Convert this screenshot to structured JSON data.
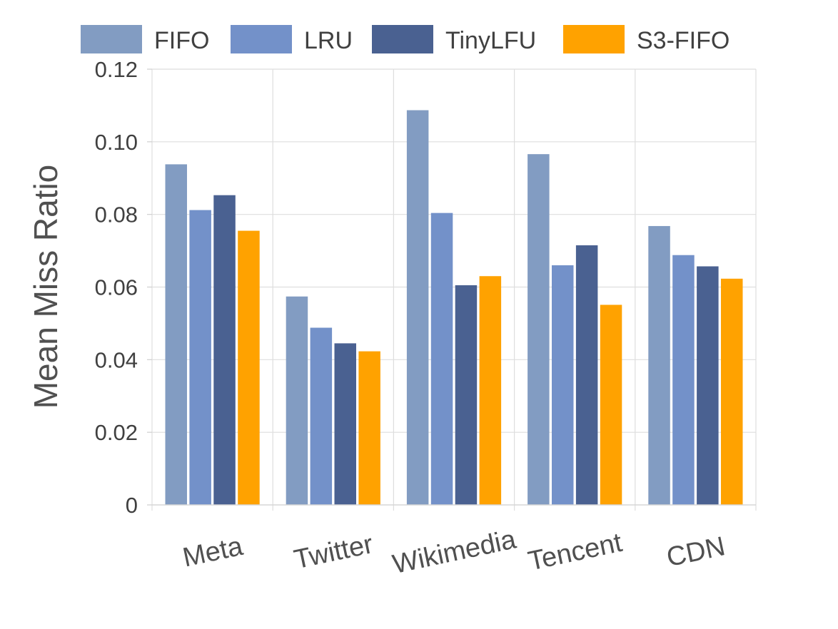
{
  "chart_data": {
    "type": "bar",
    "title": "",
    "xlabel": "",
    "ylabel": "Mean Miss Ratio",
    "ylim": [
      0,
      0.12
    ],
    "yticks": [
      0,
      0.02,
      0.04,
      0.06,
      0.08,
      0.1,
      0.12
    ],
    "ytick_labels": [
      "0",
      "0.02",
      "0.04",
      "0.06",
      "0.08",
      "0.10",
      "0.12"
    ],
    "grid": true,
    "legend_position": "top",
    "categories": [
      "Meta",
      "Twitter",
      "Wikimedia",
      "Tencent",
      "CDN"
    ],
    "series": [
      {
        "name": "FIFO",
        "color": "#829cc2",
        "values": [
          0.0938,
          0.0574,
          0.1087,
          0.0966,
          0.0768
        ]
      },
      {
        "name": "LRU",
        "color": "#7391c9",
        "values": [
          0.0812,
          0.0488,
          0.0804,
          0.066,
          0.0688
        ]
      },
      {
        "name": "TinyLFU",
        "color": "#4a6191",
        "values": [
          0.0853,
          0.0445,
          0.0605,
          0.0715,
          0.0657
        ]
      },
      {
        "name": "S3-FIFO",
        "color": "#ffa200",
        "values": [
          0.0755,
          0.0423,
          0.063,
          0.0551,
          0.0623
        ]
      }
    ]
  }
}
